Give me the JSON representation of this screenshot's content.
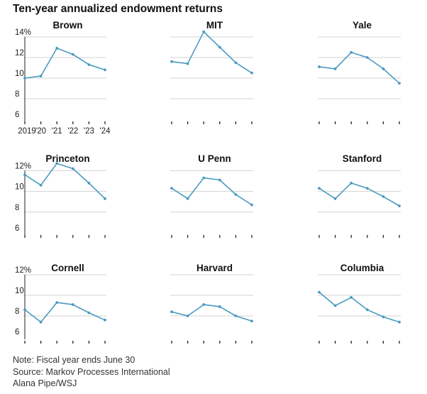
{
  "title": "Ten-year annualized endowment returns",
  "footer": {
    "note": "Note:  Fiscal year ends June 30",
    "source": "Source: Markov Processes International",
    "credit": "Alana Pipe/WSJ"
  },
  "colors": {
    "line": "#4a9ac0",
    "grid": "#d3d3d3",
    "axis": "#222222"
  },
  "chart_data": {
    "type": "line",
    "layout": "small-multiples",
    "x_ticks": [
      "2019",
      "'20",
      "'21",
      "'22",
      "'23",
      "'24"
    ],
    "y_ticks": [
      6,
      8,
      10,
      12,
      14
    ],
    "rows": [
      {
        "ylim": [
          6,
          14
        ],
        "y_tick_labels": [
          "14%",
          "12",
          "10",
          "8",
          "6"
        ],
        "panels": [
          {
            "name": "Brown",
            "values": [
              10.0,
              10.2,
              12.9,
              12.3,
              11.3,
              10.8
            ]
          },
          {
            "name": "MIT",
            "values": [
              11.6,
              11.4,
              14.5,
              13.0,
              11.5,
              10.5
            ]
          },
          {
            "name": "Yale",
            "values": [
              11.1,
              10.9,
              12.5,
              12.0,
              10.9,
              9.5
            ]
          }
        ]
      },
      {
        "ylim": [
          6,
          12
        ],
        "y_tick_labels": [
          "12%",
          "10",
          "8",
          "6"
        ],
        "panels": [
          {
            "name": "Princeton",
            "values": [
              11.6,
              10.6,
              12.7,
              12.2,
              10.8,
              9.3
            ]
          },
          {
            "name": "U Penn",
            "values": [
              10.3,
              9.3,
              11.3,
              11.1,
              9.7,
              8.7
            ]
          },
          {
            "name": "Stanford",
            "values": [
              10.3,
              9.3,
              10.8,
              10.3,
              9.5,
              8.6
            ]
          }
        ]
      },
      {
        "ylim": [
          6,
          12
        ],
        "y_tick_labels": [
          "12%",
          "10",
          "8",
          "6"
        ],
        "panels": [
          {
            "name": "Cornell",
            "values": [
              8.6,
              7.4,
              9.3,
              9.1,
              8.3,
              7.6
            ]
          },
          {
            "name": "Harvard",
            "values": [
              8.4,
              8.0,
              9.1,
              8.9,
              8.0,
              7.5
            ]
          },
          {
            "name": "Columbia",
            "values": [
              10.3,
              9.0,
              9.8,
              8.6,
              7.9,
              7.4
            ]
          }
        ]
      }
    ]
  }
}
